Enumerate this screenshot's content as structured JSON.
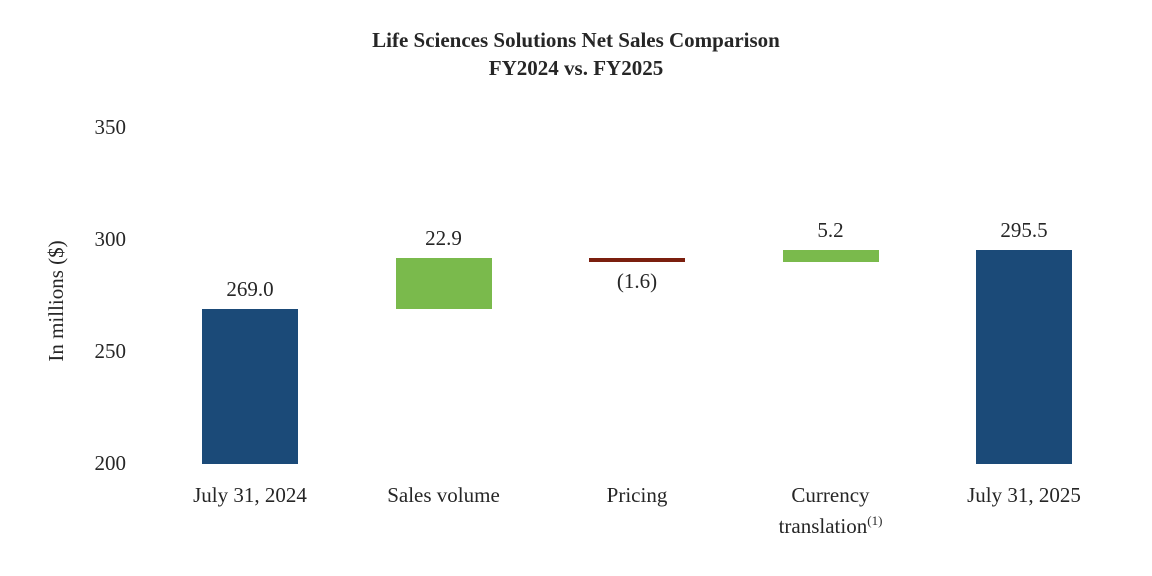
{
  "chart_data": {
    "type": "waterfall",
    "title_line1": "Life Sciences Solutions Net Sales Comparison",
    "title_line2": "FY2024 vs. FY2025",
    "ylabel": "In millions ($)",
    "y_ticks": [
      350,
      300,
      250,
      200
    ],
    "ylim": [
      200,
      350
    ],
    "baseline": 200,
    "grid": false,
    "legend": "none",
    "colors": {
      "total": "#1B4A78",
      "increase": "#7ABA4C",
      "decrease": "#7B1F0E"
    },
    "bars": [
      {
        "category": "July 31, 2024",
        "sup": "",
        "start": 200.0,
        "end": 269.0,
        "kind": "total",
        "value": 269.0,
        "value_label": "269.0",
        "label_pos": "above"
      },
      {
        "category": "Sales volume",
        "sup": "",
        "start": 269.0,
        "end": 291.9,
        "kind": "increase",
        "value": 22.9,
        "value_label": "22.9",
        "label_pos": "above"
      },
      {
        "category": "Pricing",
        "sup": "",
        "start": 290.3,
        "end": 291.9,
        "kind": "decrease",
        "value": -1.6,
        "value_label": "(1.6)",
        "label_pos": "below"
      },
      {
        "category": "Currency translation",
        "sup": "(1)",
        "start": 290.3,
        "end": 295.5,
        "kind": "increase",
        "value": 5.2,
        "value_label": "5.2",
        "label_pos": "above"
      },
      {
        "category": "July 31, 2025",
        "sup": "",
        "start": 200.0,
        "end": 295.5,
        "kind": "total",
        "value": 295.5,
        "value_label": "295.5",
        "label_pos": "above"
      }
    ]
  }
}
